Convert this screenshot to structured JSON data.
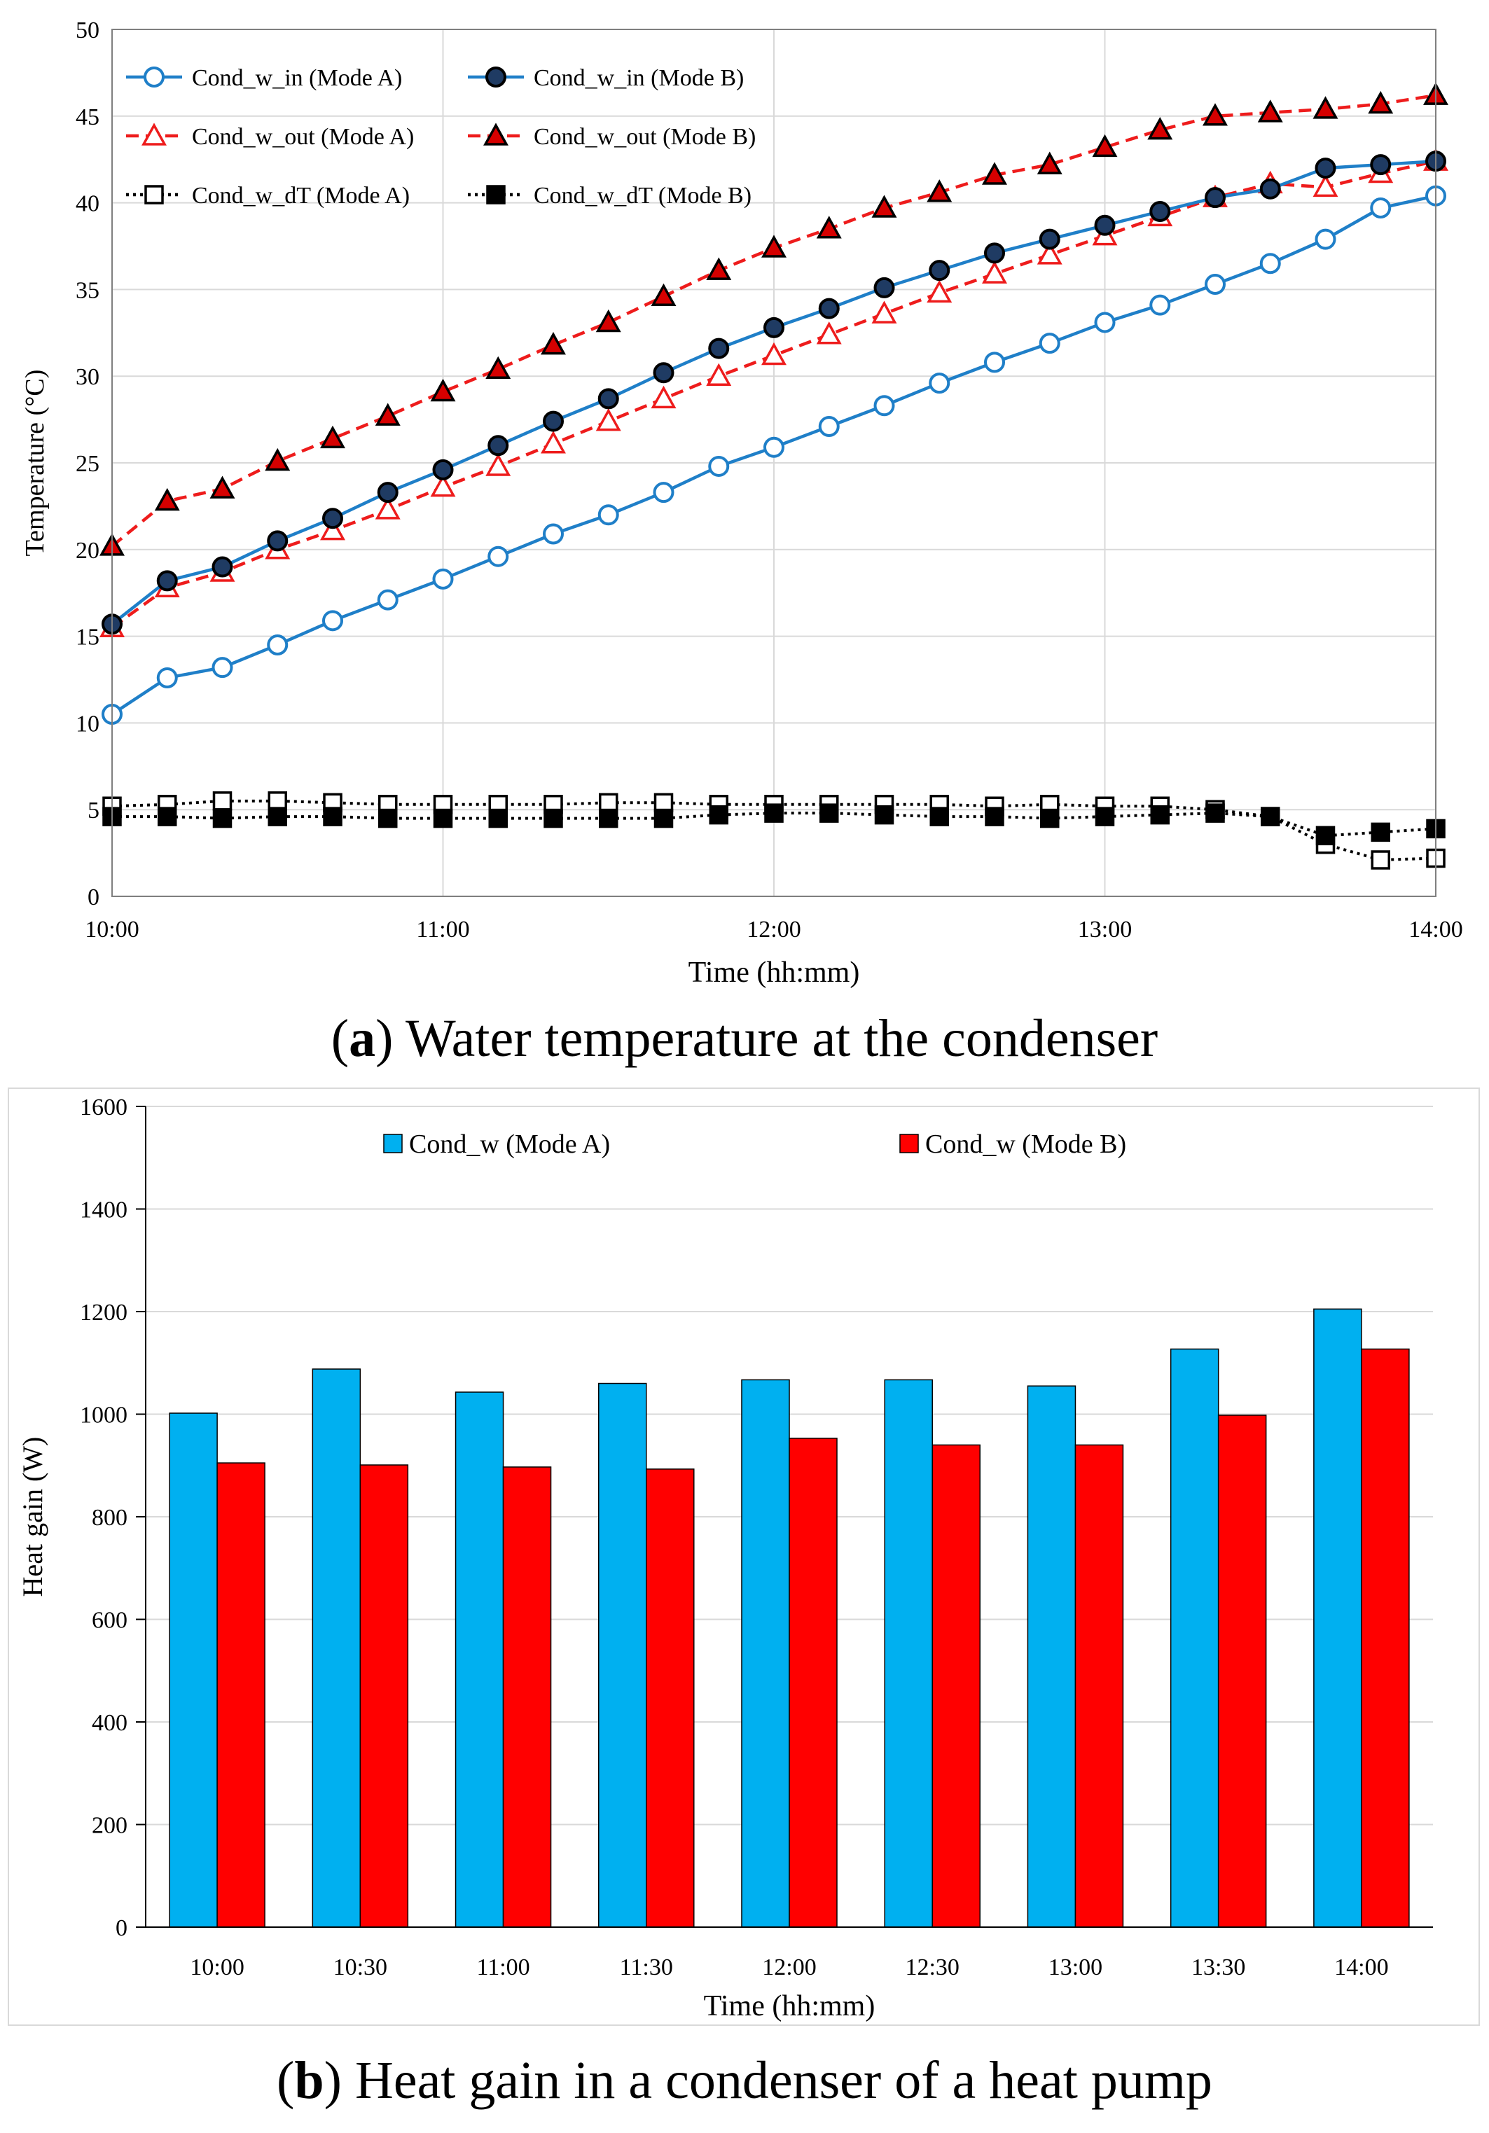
{
  "chart_data": [
    {
      "id": "a",
      "type": "line",
      "xlabel": "Time (hh:mm)",
      "ylabel": "Temperature (°C)",
      "ylim": [
        0,
        50
      ],
      "yticks": [
        "0",
        "5",
        "10",
        "15",
        "20",
        "25",
        "30",
        "35",
        "40",
        "45",
        "50"
      ],
      "xticks": [
        "10:00",
        "11:00",
        "12:00",
        "13:00",
        "14:00"
      ],
      "x": [
        0,
        10,
        20,
        30,
        40,
        50,
        60,
        70,
        80,
        90,
        100,
        110,
        120,
        130,
        140,
        150,
        160,
        170,
        180,
        190,
        200,
        210,
        220,
        230,
        240
      ],
      "x_unit": "minutes after 10:00",
      "grid": true,
      "legend_placement": "top-left",
      "series": [
        {
          "name": "Cond_w_in (Mode A)",
          "color": "#1f7fc8",
          "marker": "circle-open",
          "line": "solid",
          "values": [
            10.5,
            12.6,
            13.2,
            14.5,
            15.9,
            17.1,
            18.3,
            19.6,
            20.9,
            22.0,
            23.3,
            24.8,
            25.9,
            27.1,
            28.3,
            29.6,
            30.8,
            31.9,
            33.1,
            34.1,
            35.3,
            36.5,
            37.9,
            39.7,
            40.4
          ]
        },
        {
          "name": "Cond_w_in (Mode B)",
          "color": "#1f7fc8",
          "marker": "circle-filled",
          "line": "solid",
          "values": [
            15.7,
            18.2,
            19.0,
            20.5,
            21.8,
            23.3,
            24.6,
            26.0,
            27.4,
            28.7,
            30.2,
            31.6,
            32.8,
            33.9,
            35.1,
            36.1,
            37.1,
            37.9,
            38.7,
            39.5,
            40.3,
            40.8,
            42.0,
            42.2,
            42.4
          ]
        },
        {
          "name": "Cond_w_out (Mode A)",
          "color": "#ee1c1c",
          "marker": "triangle-open",
          "line": "dashed",
          "values": [
            15.5,
            17.8,
            18.7,
            20.0,
            21.1,
            22.3,
            23.6,
            24.8,
            26.1,
            27.4,
            28.7,
            30.0,
            31.2,
            32.4,
            33.6,
            34.8,
            35.9,
            37.0,
            38.1,
            39.2,
            40.3,
            41.1,
            40.9,
            41.7,
            42.4
          ]
        },
        {
          "name": "Cond_w_out (Mode B)",
          "color": "#ee1c1c",
          "marker": "triangle-filled",
          "line": "dashed",
          "values": [
            20.2,
            22.8,
            23.5,
            25.1,
            26.4,
            27.7,
            29.1,
            30.4,
            31.8,
            33.1,
            34.6,
            36.1,
            37.4,
            38.5,
            39.7,
            40.6,
            41.6,
            42.2,
            43.2,
            44.2,
            45.0,
            45.2,
            45.4,
            45.7,
            46.2
          ]
        },
        {
          "name": "Cond_w_dT (Mode A)",
          "color": "#000000",
          "marker": "square-open",
          "line": "dotted",
          "values": [
            5.2,
            5.3,
            5.5,
            5.5,
            5.4,
            5.3,
            5.3,
            5.3,
            5.3,
            5.4,
            5.4,
            5.3,
            5.3,
            5.3,
            5.3,
            5.3,
            5.2,
            5.3,
            5.2,
            5.2,
            5.0,
            4.6,
            3.0,
            2.1,
            2.2
          ]
        },
        {
          "name": "Cond_w_dT (Mode B)",
          "color": "#000000",
          "marker": "square-filled",
          "line": "dotted",
          "values": [
            4.6,
            4.6,
            4.5,
            4.6,
            4.6,
            4.5,
            4.5,
            4.5,
            4.5,
            4.5,
            4.5,
            4.7,
            4.8,
            4.8,
            4.7,
            4.6,
            4.6,
            4.5,
            4.6,
            4.7,
            4.8,
            4.6,
            3.5,
            3.7,
            3.9
          ]
        }
      ]
    },
    {
      "id": "b",
      "type": "bar",
      "xlabel": "Time (hh:mm)",
      "ylabel": "Heat gain (W)",
      "ylim": [
        0,
        1600
      ],
      "yticks": [
        "0",
        "200",
        "400",
        "600",
        "800",
        "1000",
        "1200",
        "1400",
        "1600"
      ],
      "categories": [
        "10:00",
        "10:30",
        "11:00",
        "11:30",
        "12:00",
        "12:30",
        "13:00",
        "13:30",
        "14:00"
      ],
      "grid": true,
      "legend_placement": "top",
      "series": [
        {
          "name": "Cond_w (Mode A)",
          "color": "#00b0f0",
          "values": [
            1002,
            1088,
            1043,
            1060,
            1067,
            1067,
            1055,
            1127,
            1205
          ]
        },
        {
          "name": "Cond_w (Mode B)",
          "color": "#ff0000",
          "values": [
            905,
            901,
            897,
            893,
            953,
            940,
            940,
            998,
            1127
          ]
        }
      ]
    }
  ],
  "captions": {
    "a": {
      "letter": "a",
      "text": " Water temperature at the condenser"
    },
    "b": {
      "letter": "b",
      "text": " Heat gain in a condenser of a heat pump"
    }
  }
}
